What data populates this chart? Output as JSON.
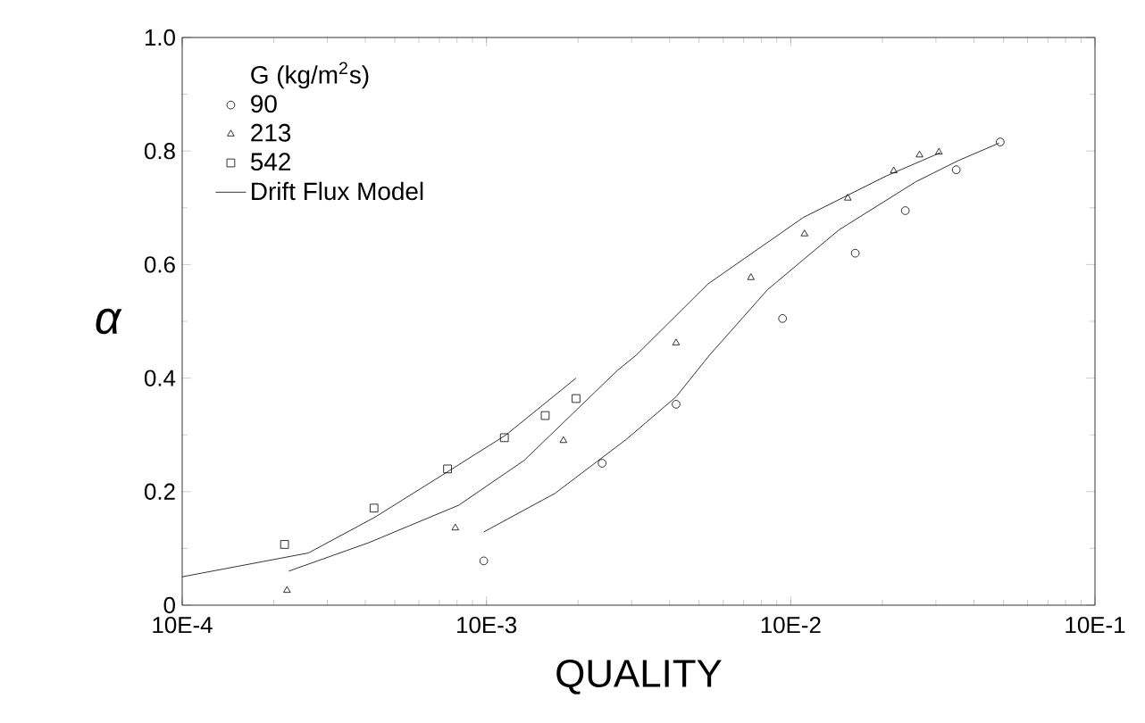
{
  "chart_data": {
    "type": "scatter",
    "xlabel": "QUALITY",
    "ylabel": "α",
    "legend_title": "G (kg/m$^{2}$s)",
    "log": "x",
    "xlim": [
      0.001,
      1
    ],
    "ylim": [
      0,
      1
    ],
    "xticks": [
      {
        "value": 0.001,
        "label": "10E-4"
      },
      {
        "value": 0.01,
        "label": "10E-3"
      },
      {
        "value": 0.1,
        "label": "10E-2"
      },
      {
        "value": 1,
        "label": "10E-1"
      }
    ],
    "yticks": [
      0,
      0.2,
      0.4,
      0.6,
      0.8,
      {
        "value": 1,
        "label": "1.0"
      }
    ],
    "grid": false,
    "legend": "top left",
    "series": [
      {
        "name": "90",
        "marker": "circle",
        "color": "#000000",
        "x": [
          0.0098,
          0.024,
          0.042,
          0.094,
          0.163,
          0.238,
          0.35,
          0.488
        ],
        "values": [
          0.078,
          0.25,
          0.354,
          0.505,
          0.62,
          0.695,
          0.767,
          0.816
        ]
      },
      {
        "name": "213",
        "marker": "triangle",
        "color": "#000000",
        "x": [
          0.00221,
          0.0079,
          0.0179,
          0.042,
          0.074,
          0.111,
          0.154,
          0.218,
          0.265,
          0.307
        ],
        "values": [
          0.026,
          0.136,
          0.29,
          0.462,
          0.577,
          0.654,
          0.717,
          0.765,
          0.793,
          0.798
        ]
      },
      {
        "name": "542",
        "marker": "square",
        "color": "#000000",
        "x": [
          0.00217,
          0.00427,
          0.00745,
          0.01145,
          0.0156,
          0.0197
        ],
        "values": [
          0.107,
          0.171,
          0.24,
          0.295,
          0.334,
          0.364
        ]
      },
      {
        "name": "Drift Flux Model",
        "type": "line",
        "marker": "none",
        "line_style": "solid",
        "color": "#000000",
        "x": [
          0.001,
          0.0026,
          0.0043,
          0.0074,
          0.0116,
          0.0197
        ],
        "values": [
          0.05,
          0.092,
          0.155,
          0.234,
          0.3,
          0.4
        ]
      },
      {
        "type": "line",
        "marker": "none",
        "line_style": "solid",
        "color": "#000000",
        "x": [
          0.00224,
          0.0041,
          0.0081,
          0.0133,
          0.027,
          0.031,
          0.0535,
          0.11,
          0.206,
          0.31
        ],
        "values": [
          0.06,
          0.11,
          0.176,
          0.255,
          0.414,
          0.44,
          0.566,
          0.683,
          0.756,
          0.797
        ]
      },
      {
        "type": "line",
        "marker": "none",
        "line_style": "solid",
        "color": "#000000",
        "x": [
          0.0098,
          0.0168,
          0.0288,
          0.042,
          0.054,
          0.084,
          0.144,
          0.258,
          0.355,
          0.484
        ],
        "values": [
          0.129,
          0.197,
          0.292,
          0.367,
          0.44,
          0.556,
          0.661,
          0.746,
          0.783,
          0.814
        ]
      }
    ]
  }
}
